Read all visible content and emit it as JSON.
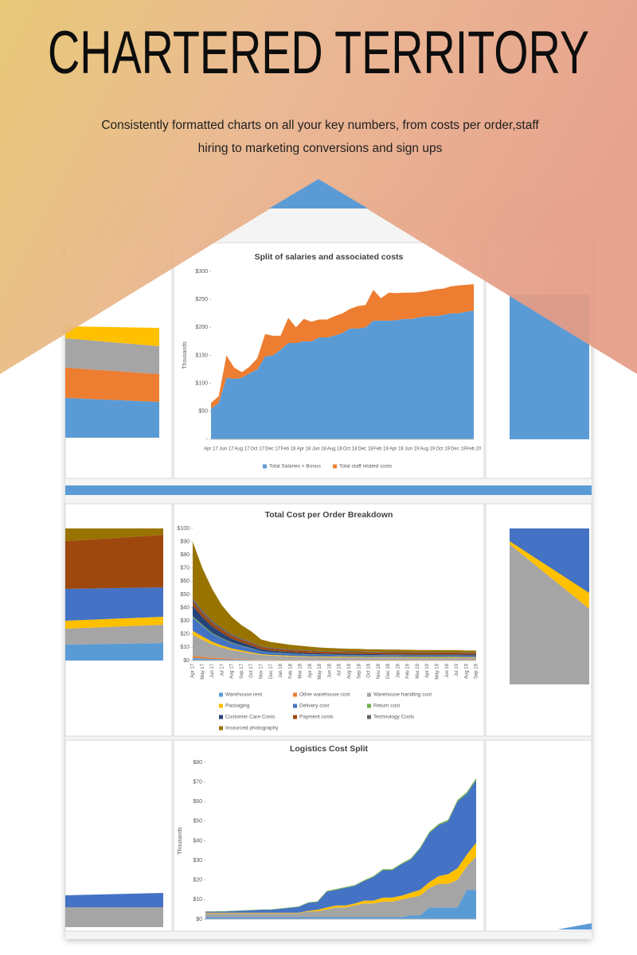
{
  "header": {
    "title": "CHARTERED TERRITORY",
    "subtitle": [
      "Consistently formatted charts on all your key numbers, from costs per order,staff",
      "hiring to marketing conversions and sign ups"
    ]
  },
  "chart_data": [
    {
      "type": "stacked-area",
      "title": "Split of salaries and associated costs",
      "ylabel": "Thousands",
      "categories": [
        "Apr 17",
        null,
        "Jun 17",
        null,
        "Aug 17",
        null,
        "Oct 17",
        null,
        "Dec 17",
        null,
        "Feb 18",
        null,
        "Apr 18",
        null,
        "Jun 18",
        null,
        "Aug 18",
        null,
        "Oct 18",
        null,
        "Dec 18",
        null,
        "Feb 19",
        null,
        "Apr 19",
        null,
        "Jun 19",
        null,
        "Aug 19",
        null,
        "Oct 19",
        null,
        "Dec 19",
        null,
        "Feb 20"
      ],
      "series": [
        {
          "name": "Total Salaries + Bonus",
          "color": "#5b9bd5",
          "values": [
            55,
            65,
            110,
            108,
            110,
            118,
            125,
            148,
            150,
            160,
            172,
            172,
            175,
            175,
            182,
            182,
            185,
            190,
            198,
            198,
            200,
            212,
            212,
            212,
            213,
            215,
            215,
            218,
            220,
            220,
            222,
            225,
            225,
            228,
            230
          ]
        },
        {
          "name": "Total staff related costs",
          "color": "#ed7d31",
          "values": [
            10,
            12,
            40,
            20,
            10,
            12,
            20,
            40,
            35,
            25,
            45,
            28,
            40,
            35,
            32,
            32,
            35,
            35,
            35,
            40,
            40,
            55,
            40,
            50,
            48,
            47,
            47,
            45,
            45,
            48,
            47,
            48,
            50,
            48,
            47
          ]
        }
      ],
      "ylim": [
        0,
        300
      ],
      "yticks": [
        {
          "value": 0,
          "label": "-"
        },
        {
          "value": 50,
          "label": "$50"
        },
        {
          "value": 100,
          "label": "$100"
        },
        {
          "value": 150,
          "label": "$150"
        },
        {
          "value": 200,
          "label": "$200"
        },
        {
          "value": 250,
          "label": "$250"
        },
        {
          "value": 300,
          "label": "$300"
        }
      ],
      "legend": "bottom"
    },
    {
      "type": "stacked-area",
      "title": "Total Cost per Order Breakdown",
      "categories": [
        "Apr 17",
        "May 17",
        "Jun 17",
        "Jul 17",
        "Aug 17",
        "Sep 17",
        "Oct 17",
        "Nov 17",
        "Dec 17",
        "Jan 18",
        "Feb 18",
        "Mar 18",
        "Apr 18",
        "May 18",
        "Jun 18",
        "Jul 18",
        "Aug 18",
        "Sep 18",
        "Oct 18",
        "Nov 18",
        "Dec 18",
        "Jan 19",
        "Feb 19",
        "Mar 19",
        "Apr 19",
        "May 19",
        "Jun 19",
        "Jul 19",
        "Aug 19",
        "Sep 19"
      ],
      "series": [
        {
          "name": "Warehouse rent",
          "color": "#5b9bd5",
          "values": [
            2,
            1.5,
            1.2,
            1,
            0.8,
            0.6,
            0.5,
            0.4,
            0.4,
            0.3,
            0.3,
            0.3,
            0.3,
            0.3,
            0.3,
            0.3,
            0.3,
            0.3,
            0.3,
            0.3,
            0.3,
            0.3,
            0.3,
            0.3,
            0.3,
            0.3,
            0.3,
            0.3,
            0.3,
            0.3
          ]
        },
        {
          "name": "Other warehouse cost",
          "color": "#ed7d31",
          "values": [
            1.5,
            1.2,
            1,
            0.8,
            0.6,
            0.5,
            0.4,
            0.3,
            0.3,
            0.3,
            0.2,
            0.2,
            0.2,
            0.2,
            0.2,
            0.2,
            0.2,
            0.2,
            0.2,
            0.2,
            0.2,
            0.2,
            0.2,
            0.2,
            0.2,
            0.2,
            0.2,
            0.2,
            0.2,
            0.2
          ]
        },
        {
          "name": "Warehouse handling cost",
          "color": "#a5a5a5",
          "values": [
            16,
            13,
            10,
            8,
            6.5,
            5.5,
            4.5,
            3.5,
            3,
            2.8,
            2.6,
            2.4,
            2.2,
            2.1,
            2,
            2,
            1.9,
            1.9,
            1.8,
            1.8,
            1.8,
            1.8,
            1.7,
            1.7,
            1.7,
            1.7,
            1.7,
            1.7,
            1.6,
            1.6
          ]
        },
        {
          "name": "Packaging",
          "color": "#ffc000",
          "values": [
            3,
            2.5,
            2,
            1.6,
            1.3,
            1.1,
            0.9,
            0.7,
            0.6,
            0.6,
            0.5,
            0.5,
            0.5,
            0.5,
            0.5,
            0.5,
            0.5,
            0.5,
            0.5,
            0.5,
            0.5,
            0.5,
            0.5,
            0.5,
            0.5,
            0.5,
            0.5,
            0.5,
            0.5,
            0.5
          ]
        },
        {
          "name": "Delivery cost",
          "color": "#4472c4",
          "values": [
            10,
            8,
            6,
            5,
            4,
            3.3,
            2.7,
            2,
            1.7,
            1.6,
            1.5,
            1.4,
            1.3,
            1.2,
            1.2,
            1.1,
            1.1,
            1.1,
            1,
            1,
            1,
            1,
            1,
            1,
            1,
            1,
            1,
            1,
            1,
            1
          ]
        },
        {
          "name": "Return cost",
          "color": "#70ad47",
          "values": [
            1,
            0.8,
            0.6,
            0.5,
            0.4,
            0.3,
            0.3,
            0.2,
            0.2,
            0.2,
            0.2,
            0.2,
            0.2,
            0.2,
            0.2,
            0.2,
            0.2,
            0.2,
            0.2,
            0.2,
            0.2,
            0.2,
            0.2,
            0.2,
            0.2,
            0.2,
            0.2,
            0.2,
            0.2,
            0.2
          ]
        },
        {
          "name": "Customer Care Costs",
          "color": "#264478",
          "values": [
            8,
            6,
            5,
            4,
            3,
            2.5,
            2,
            1.5,
            1.3,
            1.2,
            1.1,
            1,
            0.9,
            0.9,
            0.8,
            0.8,
            0.8,
            0.8,
            0.8,
            0.8,
            0.7,
            0.7,
            0.7,
            0.7,
            0.7,
            0.7,
            0.7,
            0.7,
            0.7,
            0.7
          ]
        },
        {
          "name": "Payment costs",
          "color": "#9e480e",
          "values": [
            3,
            2.8,
            2.6,
            2.4,
            2.2,
            2,
            1.9,
            1.7,
            1.6,
            1.6,
            1.5,
            1.5,
            1.5,
            1.4,
            1.4,
            1.4,
            1.4,
            1.4,
            1.4,
            1.4,
            1.4,
            1.4,
            1.4,
            1.4,
            1.4,
            1.4,
            1.4,
            1.4,
            1.4,
            1.4
          ]
        },
        {
          "name": "Technology Costs",
          "color": "#636363",
          "values": [
            2.5,
            2,
            1.7,
            1.4,
            1.2,
            1,
            0.9,
            0.7,
            0.6,
            0.6,
            0.5,
            0.5,
            0.5,
            0.5,
            0.5,
            0.5,
            0.5,
            0.5,
            0.5,
            0.5,
            0.5,
            0.5,
            0.5,
            0.5,
            0.5,
            0.5,
            0.5,
            0.5,
            0.5,
            0.5
          ]
        },
        {
          "name": "Insourced photography",
          "color": "#997300",
          "values": [
            43,
            32,
            24,
            17,
            13,
            10,
            8,
            5,
            4.3,
            3.8,
            3.5,
            3.2,
            2.9,
            2.6,
            2.4,
            2.2,
            2,
            1.9,
            1.8,
            1.8,
            1.7,
            1.7,
            1.6,
            1.5,
            1.5,
            1.4,
            1.3,
            1.3,
            1.2,
            1.2
          ]
        }
      ],
      "ylim": [
        0,
        100
      ],
      "yticks": [
        {
          "value": 0,
          "label": "$0"
        },
        {
          "value": 10,
          "label": "$10"
        },
        {
          "value": 20,
          "label": "$20"
        },
        {
          "value": 30,
          "label": "$30"
        },
        {
          "value": 40,
          "label": "$40"
        },
        {
          "value": 50,
          "label": "$50"
        },
        {
          "value": 60,
          "label": "$60"
        },
        {
          "value": 70,
          "label": "$70"
        },
        {
          "value": 80,
          "label": "$80"
        },
        {
          "value": 90,
          "label": "$90"
        },
        {
          "value": 100,
          "label": "$100"
        }
      ],
      "legend": "bottom"
    },
    {
      "type": "stacked-area",
      "title": "Logistics Cost Split",
      "ylabel": "Thousands",
      "series": [
        {
          "color": "#5b9bd5",
          "values": [
            1,
            1,
            1,
            1,
            1,
            1,
            1,
            1,
            1,
            1,
            1,
            1,
            1,
            1,
            1,
            1,
            1,
            1,
            1,
            1,
            1,
            1,
            2,
            2,
            6,
            6,
            6,
            6,
            15,
            15
          ]
        },
        {
          "color": "#a5a5a5",
          "values": [
            2,
            2,
            2,
            2,
            2,
            2,
            2,
            2,
            2,
            2,
            2,
            3,
            3,
            4,
            5,
            5,
            6,
            7,
            7,
            8,
            8,
            9,
            9,
            10,
            10,
            12,
            12,
            14,
            12,
            17
          ]
        },
        {
          "color": "#ffc000",
          "values": [
            0.3,
            0.3,
            0.3,
            0.3,
            0.3,
            0.3,
            0.3,
            0.3,
            0.3,
            0.3,
            0.3,
            0.3,
            0.8,
            1,
            1,
            1,
            1,
            1.5,
            1.5,
            2,
            2,
            2,
            2.5,
            3,
            3,
            4,
            5,
            6,
            6,
            7
          ]
        },
        {
          "color": "#4472c4",
          "values": [
            0.5,
            0.5,
            0.6,
            0.8,
            1,
            1.2,
            1.5,
            1.5,
            2,
            2.5,
            3,
            4,
            4,
            8,
            8,
            9,
            9,
            10,
            12,
            14,
            14,
            16,
            17,
            21,
            25,
            26,
            27,
            34,
            31,
            32
          ]
        },
        {
          "color": "#70ad47",
          "values": [
            0.2,
            0.2,
            0.2,
            0.2,
            0.2,
            0.2,
            0.2,
            0.2,
            0.2,
            0.2,
            0.2,
            0.3,
            0.3,
            0.4,
            0.4,
            0.4,
            0.4,
            0.4,
            0.5,
            0.5,
            0.5,
            0.5,
            0.5,
            0.6,
            0.6,
            0.7,
            0.7,
            0.8,
            0.8,
            1
          ]
        }
      ],
      "ylim": [
        0,
        80
      ],
      "yticks": [
        {
          "value": 0,
          "label": "$0"
        },
        {
          "value": 10,
          "label": "$10"
        },
        {
          "value": 20,
          "label": "$20"
        },
        {
          "value": 30,
          "label": "$30"
        },
        {
          "value": 40,
          "label": "$40"
        },
        {
          "value": 50,
          "label": "$50"
        },
        {
          "value": 60,
          "label": "$60"
        },
        {
          "value": 70,
          "label": "$70"
        },
        {
          "value": 80,
          "label": "$80"
        }
      ]
    }
  ]
}
